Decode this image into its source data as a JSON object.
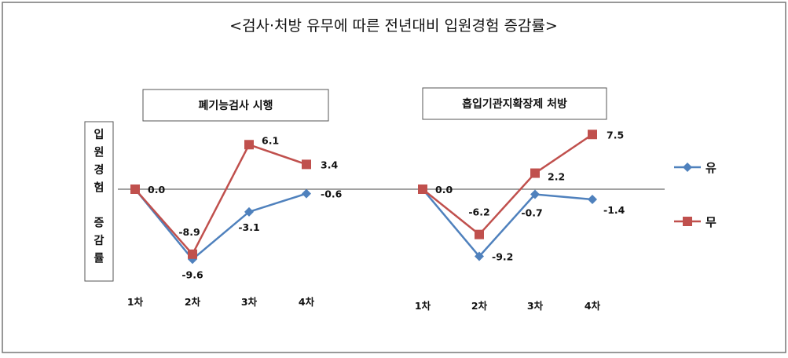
{
  "page_title": "<검사·처방 유무에 따른 전년대비 입원경험 증감률>",
  "y_axis_label": [
    "입",
    "원",
    "경",
    "험",
    "",
    "증",
    "감",
    "률"
  ],
  "legend": [
    {
      "label": "유",
      "color": "#4F81BD",
      "marker": "diamond"
    },
    {
      "label": "무",
      "color": "#C0504D",
      "marker": "square"
    }
  ],
  "chart_data": [
    {
      "type": "line",
      "title": "폐기능검사 시행",
      "categories": [
        "1차",
        "2차",
        "3차",
        "4차"
      ],
      "series": [
        {
          "name": "유",
          "values": [
            0.0,
            -9.6,
            -3.1,
            -0.6
          ]
        },
        {
          "name": "무",
          "values": [
            0.0,
            -8.9,
            6.1,
            3.4
          ]
        }
      ],
      "labels": {
        "유": [
          "",
          "-9.6",
          "-3.1",
          "-0.6"
        ],
        "무": [
          "0.0",
          "-8.9",
          "6.1",
          "3.4"
        ]
      },
      "ylim": [
        -12,
        8
      ]
    },
    {
      "type": "line",
      "title": "흡입기관지확장제 처방",
      "categories": [
        "1차",
        "2차",
        "3차",
        "4차"
      ],
      "series": [
        {
          "name": "유",
          "values": [
            0.0,
            -9.2,
            -0.7,
            -1.4
          ]
        },
        {
          "name": "무",
          "values": [
            0.0,
            -6.2,
            2.2,
            7.5
          ]
        }
      ],
      "labels": {
        "유": [
          "",
          "-9.2",
          "-0.7",
          "-1.4"
        ],
        "무": [
          "0.0",
          "-6.2",
          "2.2",
          "7.5"
        ]
      },
      "ylim": [
        -12,
        8
      ]
    }
  ]
}
